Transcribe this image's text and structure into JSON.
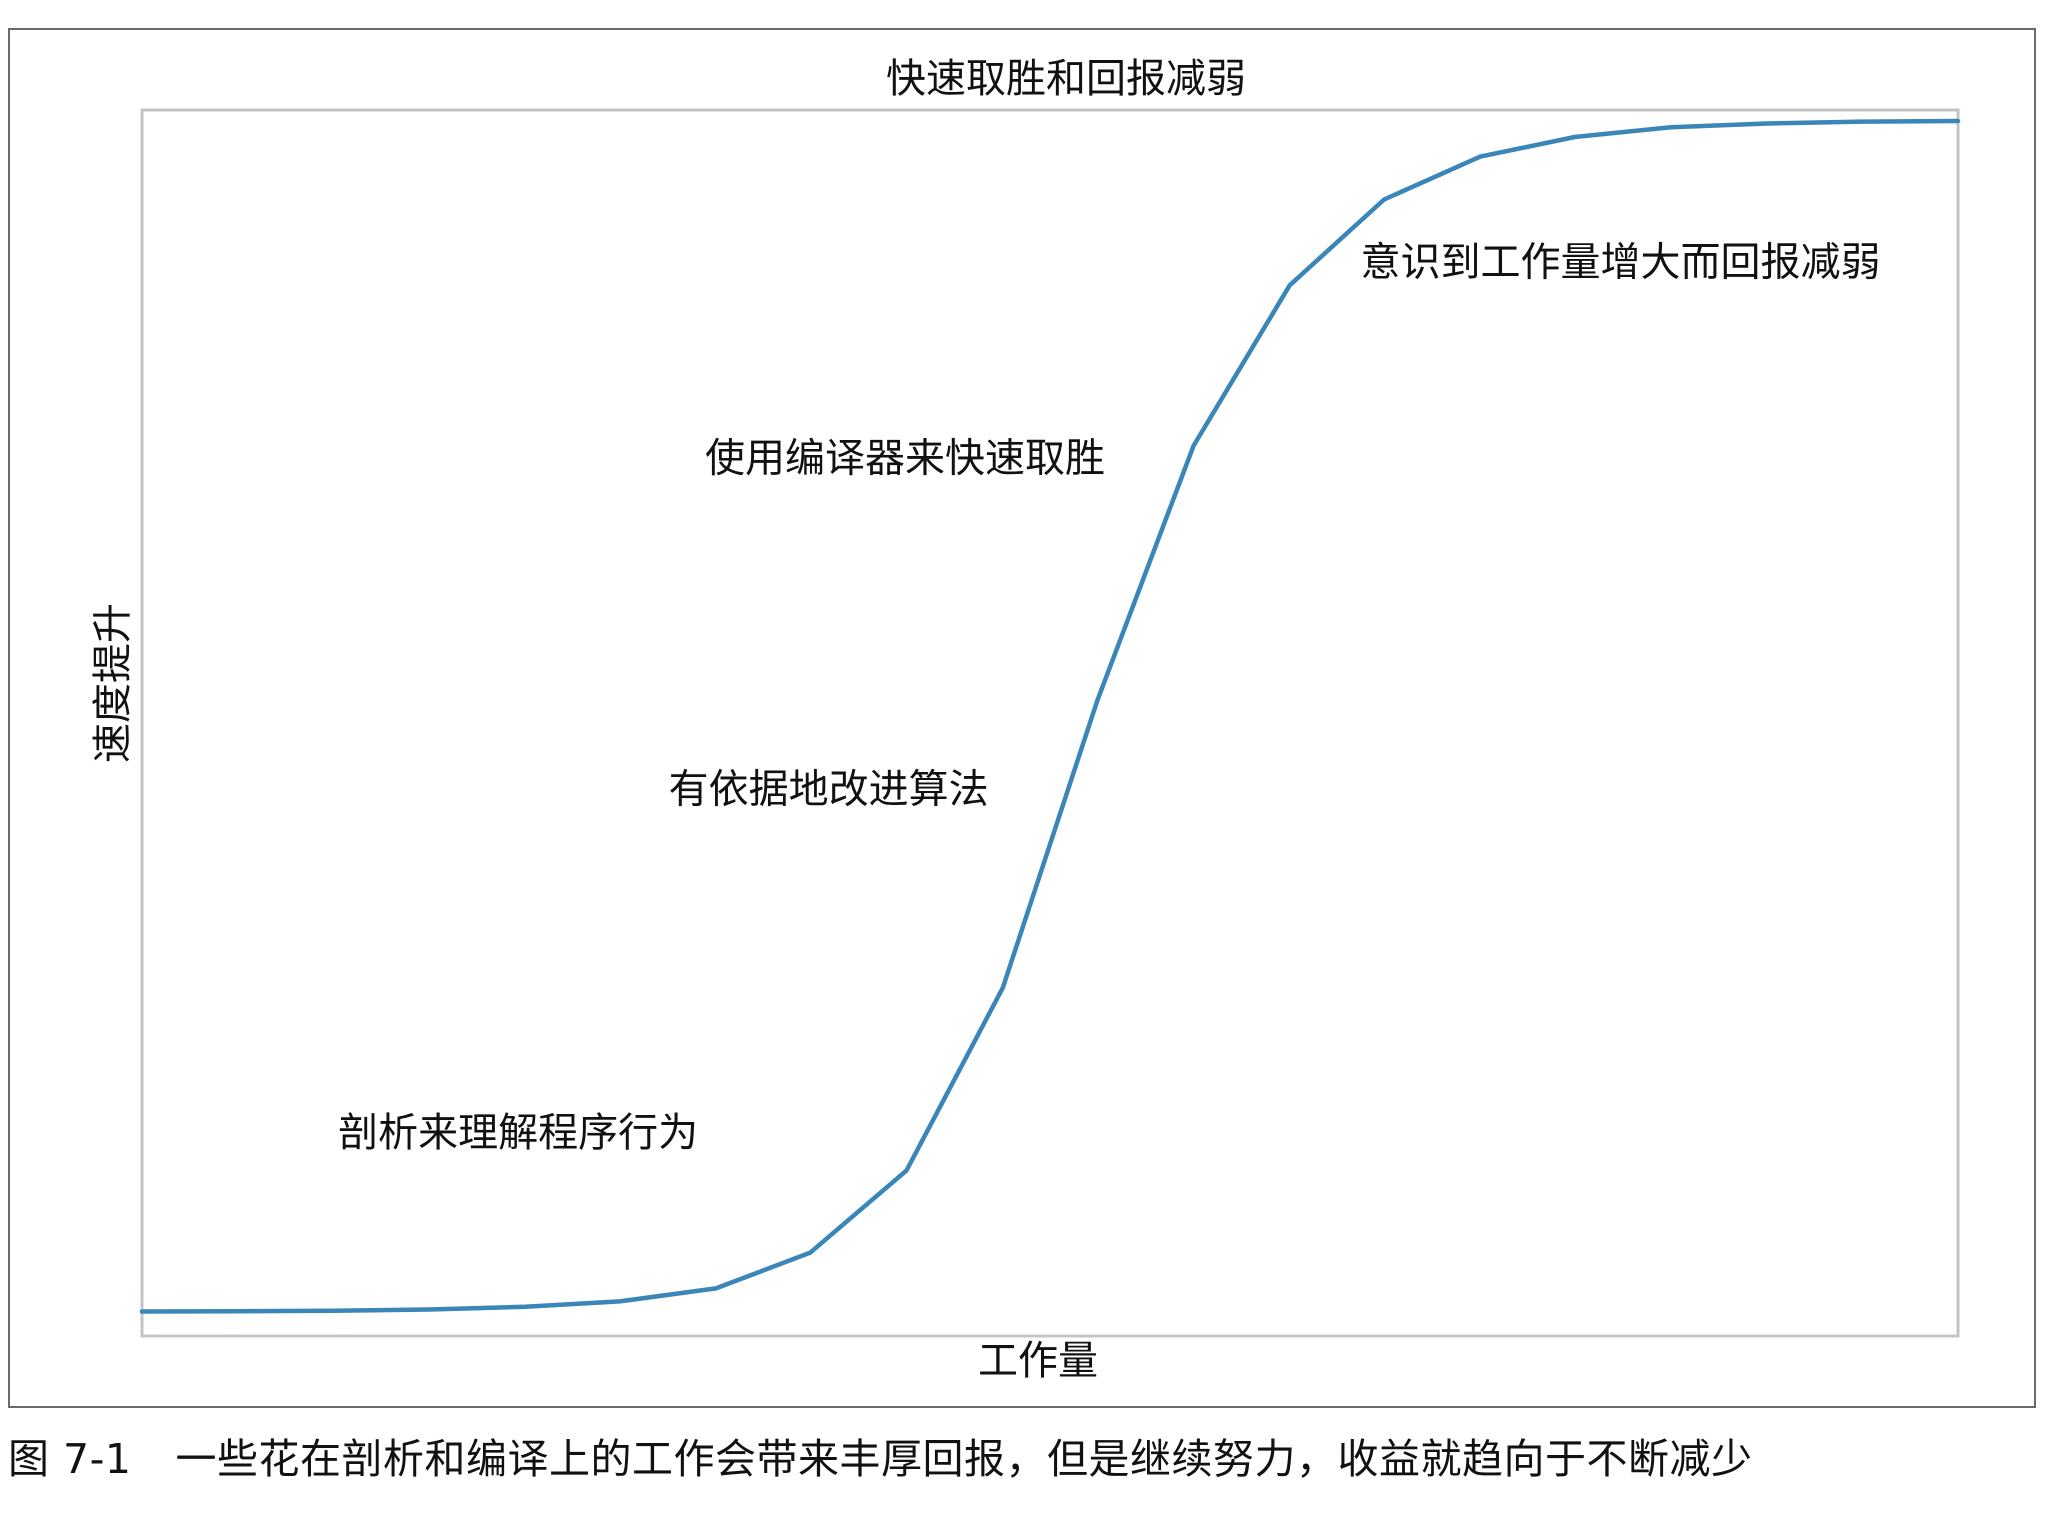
{
  "chart_data": {
    "type": "line",
    "title": "快速取胜和回报减弱",
    "xlabel": "工作量",
    "ylabel": "速度提升",
    "xlim": [
      0,
      1
    ],
    "ylim": [
      0,
      1
    ],
    "grid": false,
    "legend": false,
    "series": [
      {
        "color": "#3a86b8",
        "x": [
          0.0,
          0.053,
          0.105,
          0.158,
          0.211,
          0.263,
          0.316,
          0.368,
          0.421,
          0.474,
          0.526,
          0.579,
          0.632,
          0.684,
          0.737,
          0.789,
          0.842,
          0.895,
          0.947,
          1.0
        ],
        "y": [
          0.02,
          0.0202,
          0.0206,
          0.0216,
          0.0238,
          0.0282,
          0.0388,
          0.068,
          0.135,
          0.284,
          0.518,
          0.726,
          0.857,
          0.927,
          0.962,
          0.978,
          0.986,
          0.989,
          0.9905,
          0.991
        ]
      }
    ],
    "annotations": [
      {
        "text": "剖析来理解程序行为",
        "x": 0.108,
        "y": 0.155
      },
      {
        "text": "有依据地改进算法",
        "x": 0.29,
        "y": 0.435
      },
      {
        "text": "使用编译器来快速取胜",
        "x": 0.31,
        "y": 0.705
      },
      {
        "text": "意识到工作量增大而回报减弱",
        "x": 0.671,
        "y": 0.865
      }
    ]
  },
  "caption": {
    "figure_number": "图 7-1",
    "text": "一些花在剖析和编译上的工作会带来丰厚回报，但是继续努力，收益就趋向于不断减少"
  }
}
